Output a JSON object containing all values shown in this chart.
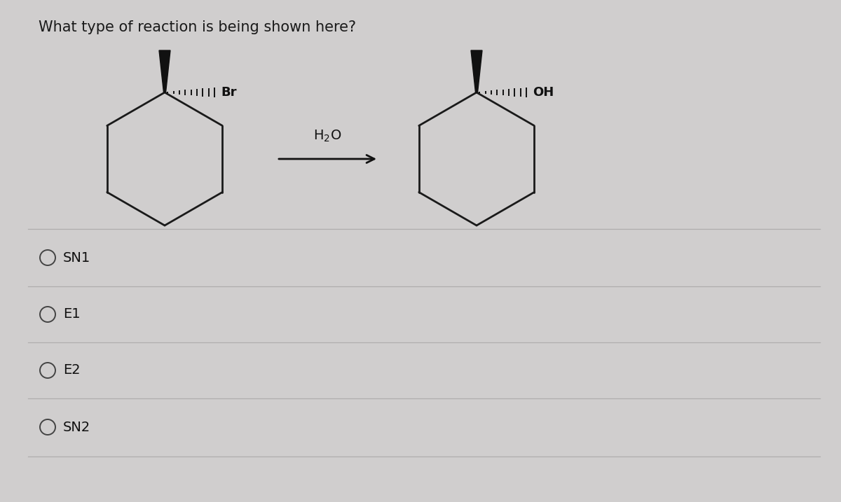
{
  "title": "What type of reaction is being shown here?",
  "title_fontsize": 15,
  "background_color": "#d0cece",
  "card_color": "#e8e6e6",
  "options": [
    "SN1",
    "E1",
    "E2",
    "SN2"
  ],
  "option_fontsize": 14,
  "arrow_label": "H₂O",
  "reactant_label": "Br",
  "product_label": "OH",
  "line_color": "#1a1a1a",
  "line_width": 2.0,
  "divider_color": "#b0aeae"
}
